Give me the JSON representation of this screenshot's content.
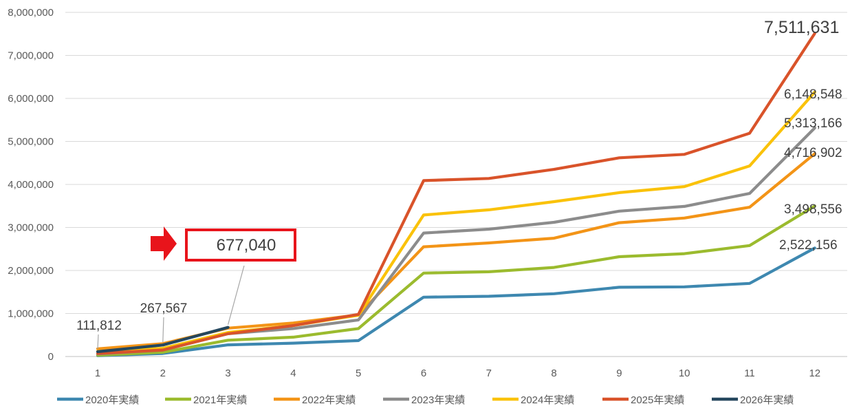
{
  "chart_data": {
    "type": "line",
    "x": [
      1,
      2,
      3,
      4,
      5,
      6,
      7,
      8,
      9,
      10,
      11,
      12
    ],
    "ylim": [
      0,
      8000000
    ],
    "yticks": [
      "0",
      "1,000,000",
      "2,000,000",
      "3,000,000",
      "4,000,000",
      "5,000,000",
      "6,000,000",
      "7,000,000",
      "8,000,000"
    ],
    "ytick_values": [
      0,
      1000000,
      2000000,
      3000000,
      4000000,
      5000000,
      6000000,
      7000000,
      8000000
    ],
    "grid": true,
    "legend_position": "bottom",
    "series": [
      {
        "name": "2020年実績",
        "color": "#3E88B0",
        "values": [
          20000,
          70000,
          270000,
          310000,
          370000,
          1380000,
          1400000,
          1460000,
          1610000,
          1620000,
          1700000,
          2522156
        ]
      },
      {
        "name": "2021年実績",
        "color": "#9BBB2E",
        "values": [
          30000,
          100000,
          380000,
          450000,
          650000,
          1940000,
          1970000,
          2070000,
          2320000,
          2390000,
          2580000,
          3498556
        ]
      },
      {
        "name": "2022年実績",
        "color": "#F39417",
        "values": [
          180000,
          300000,
          660000,
          780000,
          970000,
          2550000,
          2640000,
          2750000,
          3110000,
          3220000,
          3470000,
          4716902
        ]
      },
      {
        "name": "2023年実績",
        "color": "#8C8C8C",
        "values": [
          60000,
          150000,
          530000,
          650000,
          850000,
          2870000,
          2960000,
          3120000,
          3380000,
          3490000,
          3790000,
          5313166
        ]
      },
      {
        "name": "2024年実績",
        "color": "#FAC20A",
        "values": [
          120000,
          190000,
          560000,
          720000,
          960000,
          3290000,
          3410000,
          3600000,
          3810000,
          3950000,
          4430000,
          6148548
        ]
      },
      {
        "name": "2025年実績",
        "color": "#D9532A",
        "values": [
          70000,
          150000,
          530000,
          720000,
          980000,
          4090000,
          4140000,
          4350000,
          4620000,
          4700000,
          5190000,
          7511631
        ]
      },
      {
        "name": "2026年実績",
        "color": "#25475E",
        "values": [
          111812,
          267567,
          677040,
          null,
          null,
          null,
          null,
          null,
          null,
          null,
          null,
          null
        ]
      }
    ],
    "annotations": [
      {
        "text": "111,812",
        "series": "2026年実績",
        "x": 1
      },
      {
        "text": "267,567",
        "series": "2026年実績",
        "x": 2
      },
      {
        "text": "677,040",
        "series": "2026年実績",
        "x": 3,
        "boxed": true,
        "box_color": "#E8141B"
      },
      {
        "text": "7,511,631",
        "series": "2025年実績",
        "x": 12
      },
      {
        "text": "6,148,548",
        "series": "2024年実績",
        "x": 12
      },
      {
        "text": "5,313,166",
        "series": "2023年実績",
        "x": 12
      },
      {
        "text": "4,716,902",
        "series": "2022年実績",
        "x": 12
      },
      {
        "text": "3,498,556",
        "series": "2021年実績",
        "x": 12
      },
      {
        "text": "2,522,156",
        "series": "2020年実績",
        "x": 12
      }
    ]
  }
}
